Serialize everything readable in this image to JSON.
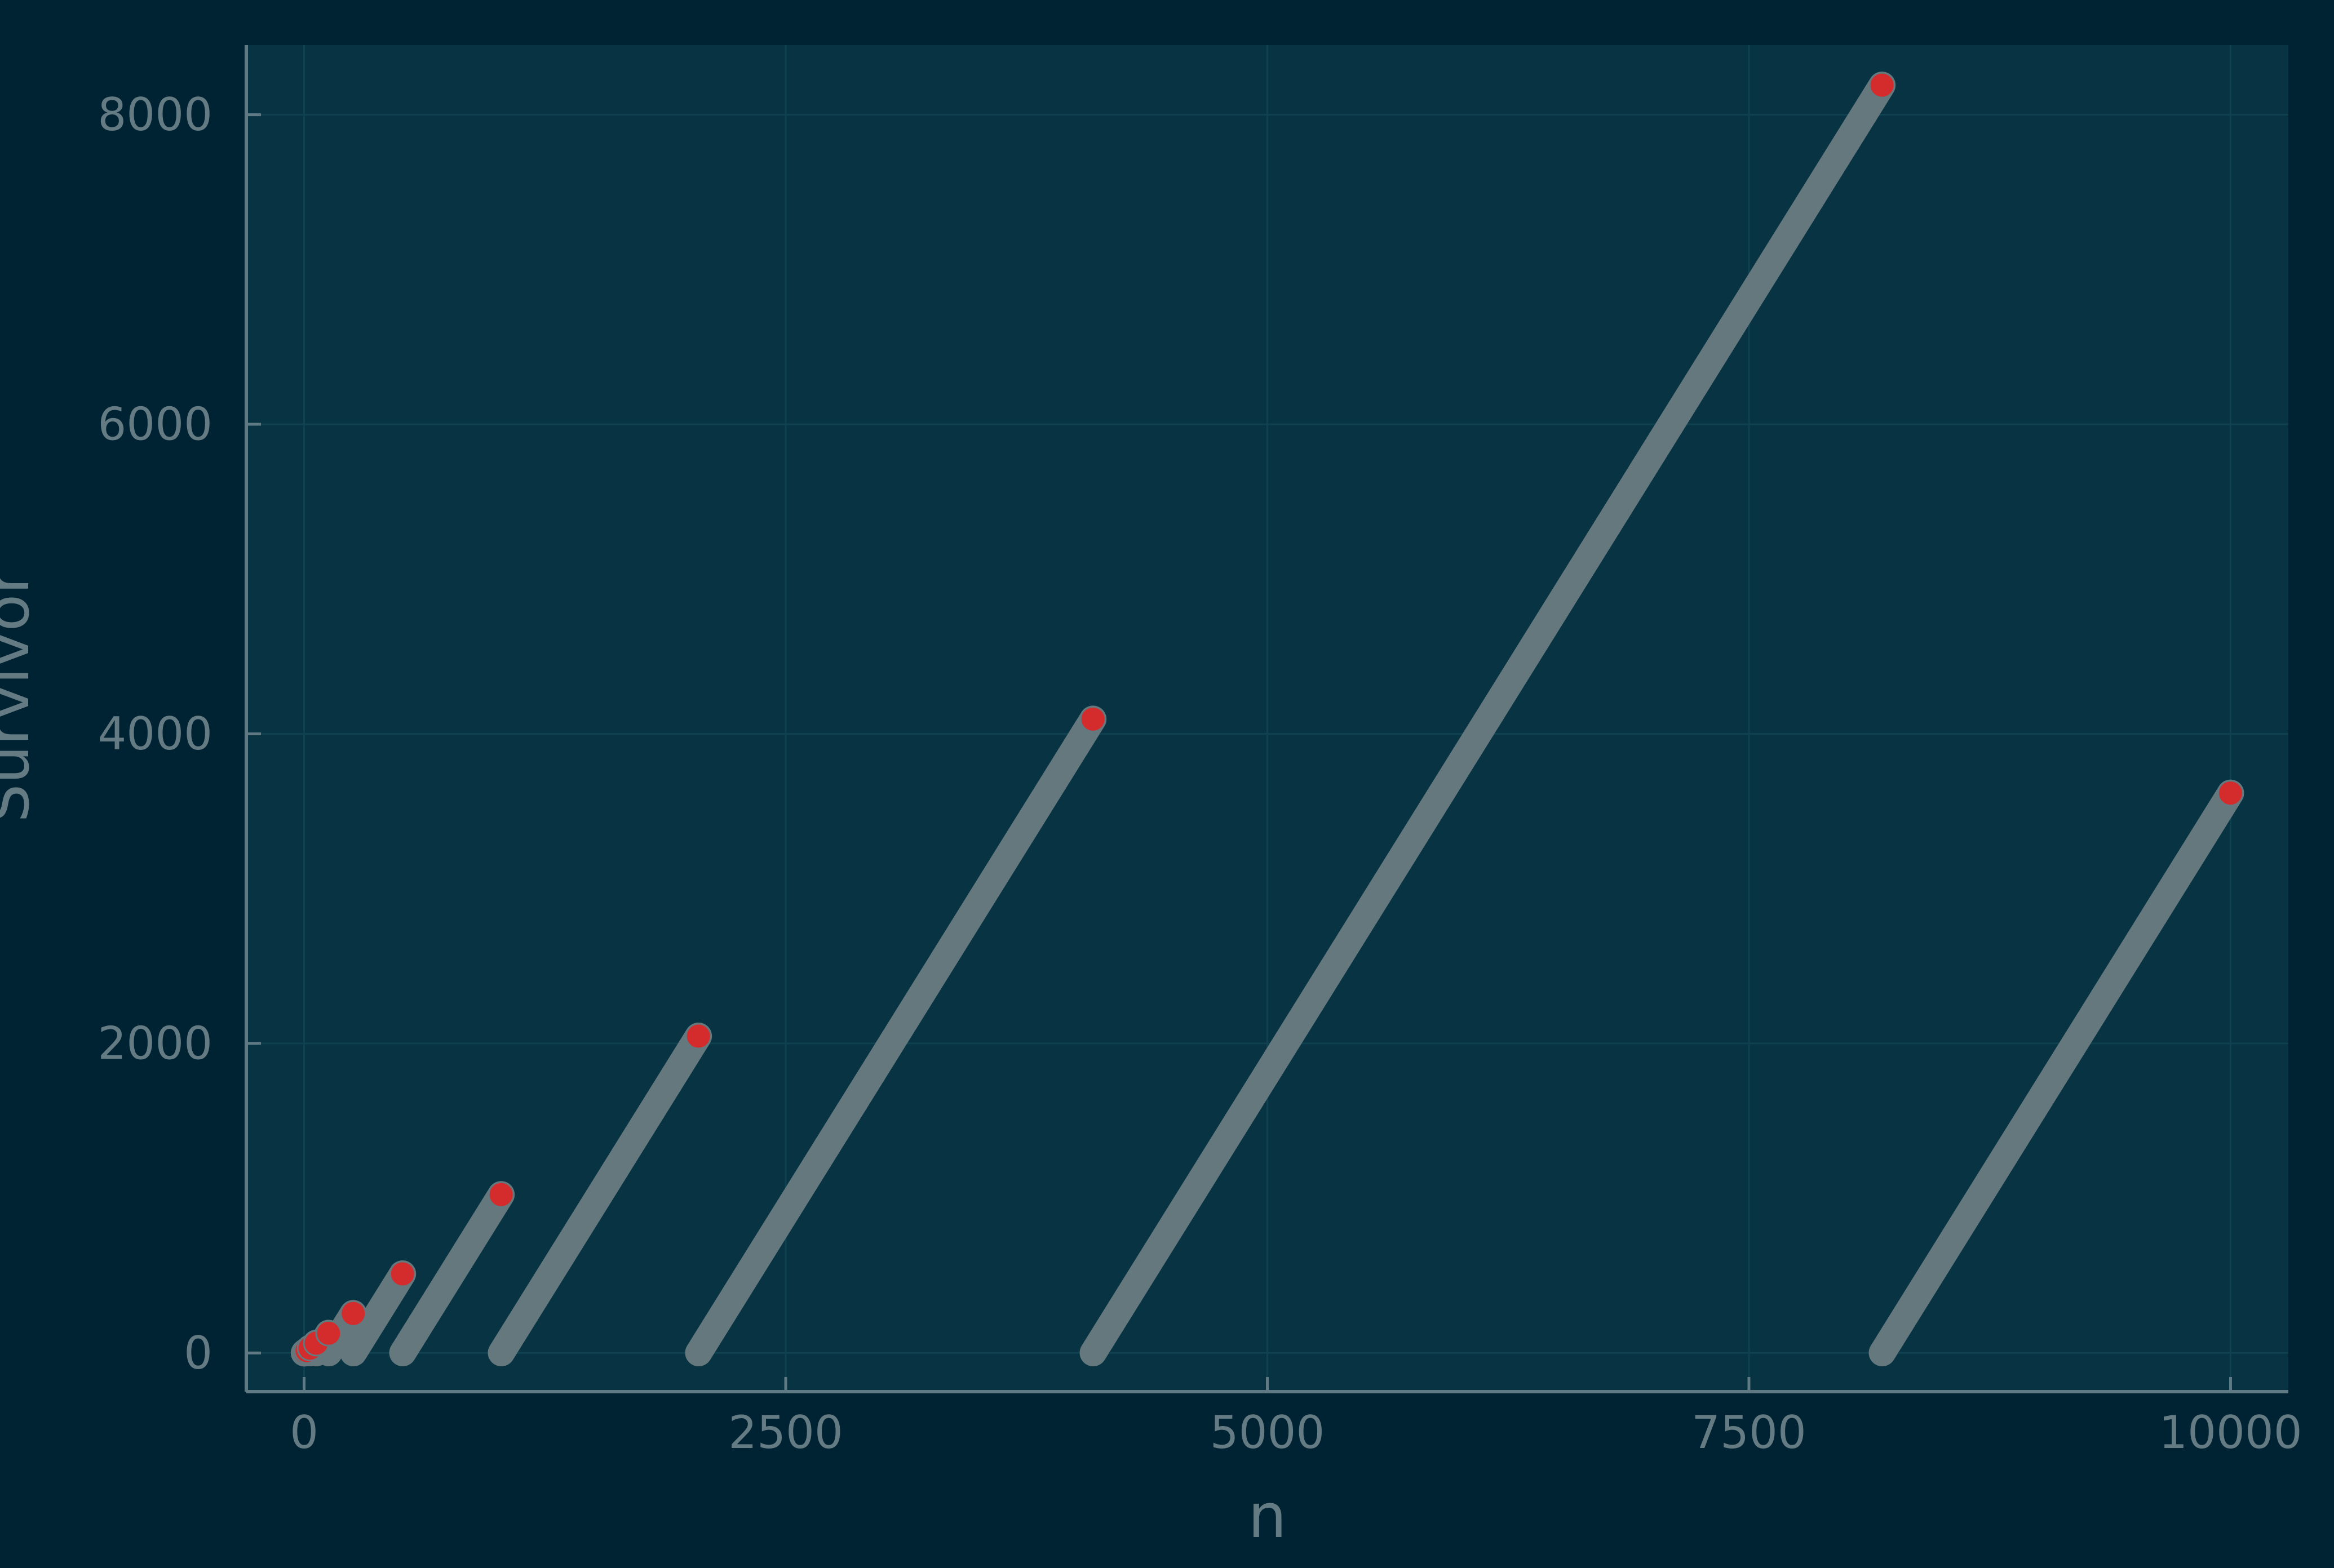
{
  "colors": {
    "page_background": "#002333",
    "plot_background": "#073342",
    "grid": "#0f4150",
    "axis": "#5f7a84",
    "text": "#647b83",
    "series_line": "#64787e",
    "endpoint_marker": "#d42b2c"
  },
  "chart_data": {
    "type": "line",
    "title": "",
    "xlabel": "n",
    "ylabel": "Survivor",
    "xlim": [
      -300,
      10300
    ],
    "ylim": [
      -250,
      8450
    ],
    "xticks": [
      0,
      2500,
      5000,
      7500,
      10000
    ],
    "xtick_labels": [
      "0",
      "2500",
      "5000",
      "7500",
      "10000"
    ],
    "yticks": [
      0,
      2000,
      4000,
      6000,
      8000
    ],
    "ytick_labels": [
      "0",
      "2000",
      "4000",
      "6000",
      "8000"
    ],
    "grid": true,
    "legend": "none",
    "segments": [
      {
        "x": [
          1,
          1
        ],
        "y": [
          0,
          0
        ]
      },
      {
        "x": [
          2,
          3
        ],
        "y": [
          1,
          3
        ]
      },
      {
        "x": [
          4,
          7
        ],
        "y": [
          1,
          7
        ]
      },
      {
        "x": [
          8,
          15
        ],
        "y": [
          1,
          15
        ]
      },
      {
        "x": [
          16,
          31
        ],
        "y": [
          1,
          31
        ]
      },
      {
        "x": [
          32,
          63
        ],
        "y": [
          1,
          63
        ]
      },
      {
        "x": [
          64,
          127
        ],
        "y": [
          1,
          127
        ]
      },
      {
        "x": [
          128,
          255
        ],
        "y": [
          1,
          255
        ]
      },
      {
        "x": [
          256,
          511
        ],
        "y": [
          1,
          511
        ]
      },
      {
        "x": [
          512,
          1023
        ],
        "y": [
          1,
          1023
        ]
      },
      {
        "x": [
          1024,
          2047
        ],
        "y": [
          1,
          2047
        ]
      },
      {
        "x": [
          2048,
          4095
        ],
        "y": [
          1,
          4095
        ]
      },
      {
        "x": [
          4096,
          8191
        ],
        "y": [
          1,
          8191
        ]
      },
      {
        "x": [
          8192,
          10000
        ],
        "y": [
          1,
          3617
        ]
      }
    ],
    "endpoints": {
      "x": [
        1,
        3,
        7,
        15,
        31,
        63,
        127,
        255,
        511,
        1023,
        2047,
        4095,
        8191,
        10000
      ],
      "y": [
        0,
        3,
        7,
        15,
        31,
        63,
        127,
        255,
        511,
        1023,
        2047,
        4095,
        8191,
        3617
      ]
    }
  }
}
